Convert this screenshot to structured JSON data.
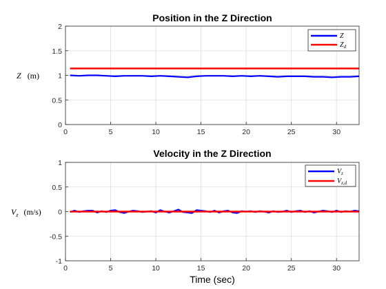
{
  "chart_data": [
    {
      "type": "line",
      "title": "Position in the Z Direction",
      "xlabel": "",
      "ylabel": "Z  (m)",
      "xlim": [
        0,
        32.5
      ],
      "ylim": [
        0,
        2
      ],
      "xticks": [
        0,
        5,
        10,
        15,
        20,
        25,
        30
      ],
      "yticks": [
        0,
        0.5,
        1,
        1.5,
        2
      ],
      "grid": true,
      "legend_placement": "top-right",
      "series": [
        {
          "name": "Z",
          "color": "#0000ff",
          "x": [
            0.5,
            1.5,
            2.5,
            3.5,
            4.5,
            5.5,
            6.5,
            7.5,
            8.5,
            9.5,
            10.5,
            11.5,
            12.5,
            13.5,
            14.5,
            15.5,
            16.5,
            17.5,
            18.5,
            19.5,
            20.5,
            21.5,
            22.5,
            23.5,
            24.5,
            25.5,
            26.5,
            27.5,
            28.5,
            29.5,
            30.5,
            31.5,
            32.5
          ],
          "y": [
            1.0,
            0.99,
            1.0,
            1.0,
            0.99,
            0.98,
            0.99,
            0.99,
            0.99,
            0.98,
            0.99,
            0.98,
            0.97,
            0.96,
            0.98,
            0.99,
            0.99,
            0.99,
            0.98,
            0.99,
            0.98,
            0.99,
            0.98,
            0.97,
            0.98,
            0.98,
            0.98,
            0.97,
            0.97,
            0.96,
            0.97,
            0.97,
            0.98
          ]
        },
        {
          "name": "Z_d",
          "color": "#ff0000",
          "x": [
            0.5,
            32.5
          ],
          "y": [
            1.14,
            1.14
          ]
        }
      ]
    },
    {
      "type": "line",
      "title": "Velocity in the Z Direction",
      "xlabel": "Time (sec)",
      "ylabel": "V_z  (m/s)",
      "xlim": [
        0,
        32.5
      ],
      "ylim": [
        -1,
        1
      ],
      "xticks": [
        0,
        5,
        10,
        15,
        20,
        25,
        30
      ],
      "yticks": [
        -1,
        -0.5,
        0,
        0.5,
        1
      ],
      "grid": true,
      "legend_placement": "top-right",
      "series": [
        {
          "name": "V_z",
          "color": "#0000ff",
          "x": [
            0.5,
            1,
            1.5,
            2,
            2.5,
            3,
            3.5,
            4,
            4.5,
            5,
            5.5,
            6,
            6.5,
            7,
            7.5,
            8,
            8.5,
            9,
            9.5,
            10,
            10.5,
            11,
            11.5,
            12,
            12.5,
            13,
            13.5,
            14,
            14.5,
            15,
            15.5,
            16,
            16.5,
            17,
            17.5,
            18,
            18.5,
            19,
            19.5,
            20,
            20.5,
            21,
            21.5,
            22,
            22.5,
            23,
            23.5,
            24,
            24.5,
            25,
            25.5,
            26,
            26.5,
            27,
            27.5,
            28,
            28.5,
            29,
            29.5,
            30,
            30.5,
            31,
            31.5,
            32,
            32.5
          ],
          "y": [
            -0.01,
            0.02,
            -0.01,
            0.01,
            0.02,
            0.02,
            -0.02,
            0.01,
            -0.01,
            0.02,
            0.03,
            -0.01,
            -0.03,
            0.0,
            0.02,
            0.01,
            -0.01,
            0.0,
            0.01,
            -0.02,
            0.03,
            0.0,
            -0.02,
            0.01,
            0.04,
            -0.01,
            -0.02,
            -0.03,
            0.03,
            0.02,
            0.01,
            -0.01,
            0.02,
            -0.02,
            0.01,
            0.02,
            -0.02,
            -0.03,
            0.01,
            0.0,
            0.01,
            -0.01,
            0.01,
            0.0,
            -0.02,
            0.01,
            -0.01,
            0.0,
            0.02,
            -0.01,
            0.01,
            0.02,
            -0.01,
            0.01,
            -0.02,
            0.0,
            0.02,
            0.01,
            -0.01,
            0.02,
            -0.01,
            0.01,
            0.0,
            0.02,
            0.01
          ]
        },
        {
          "name": "V_{z,d}",
          "color": "#ff0000",
          "x": [
            0.5,
            32.5
          ],
          "y": [
            0,
            0
          ]
        }
      ]
    }
  ],
  "legend": {
    "top": {
      "z_base": "Z",
      "zd_base": "Z",
      "zd_sub": "d"
    },
    "bottom": {
      "vz_base": "V",
      "vz_sub": "z",
      "vzd_base": "V",
      "vzd_sub": "z,d"
    }
  },
  "ylabels": {
    "top": {
      "sym": "Z",
      "unit": "(m)"
    },
    "bottom": {
      "base": "V",
      "sub": "z",
      "unit": "(m/s)"
    }
  }
}
